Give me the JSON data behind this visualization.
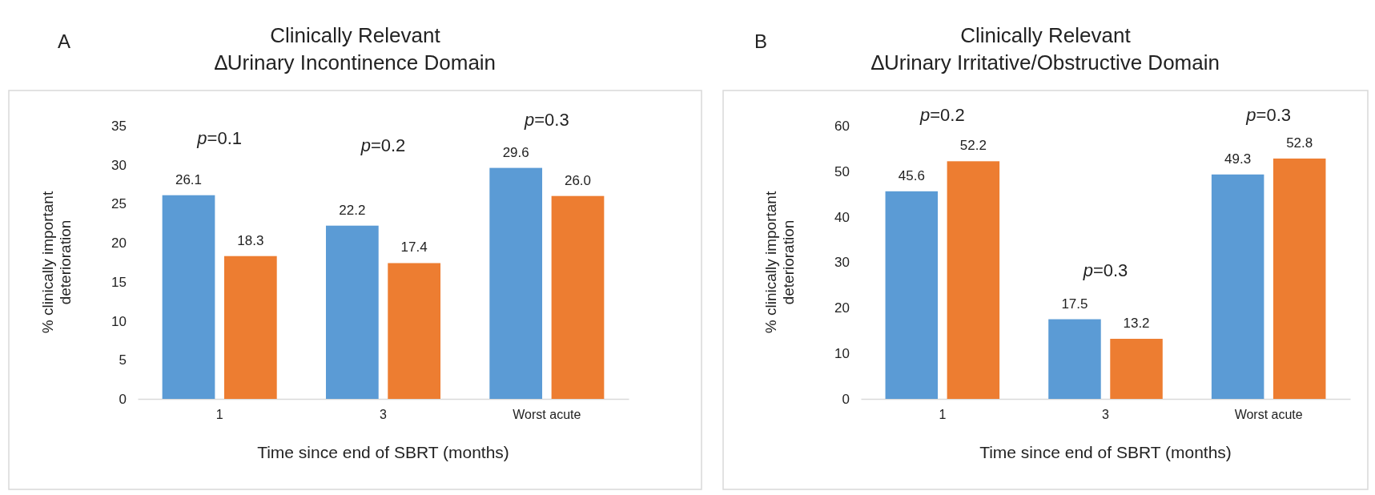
{
  "chart_data": [
    {
      "type": "bar",
      "title": "Clinically Relevant\n∆Urinary Incontinence Domain",
      "xlabel": "Time since end of SBRT (months)",
      "ylabel": "% clinically important\ndeterioration",
      "categories": [
        "1",
        "3",
        "Worst acute"
      ],
      "series": [
        {
          "color": "#5b9bd5",
          "values": [
            26.1,
            22.2,
            29.6
          ],
          "value_labels": [
            "26.1",
            "22.2",
            "29.6"
          ]
        },
        {
          "color": "#ed7d31",
          "values": [
            18.3,
            17.4,
            26.0
          ],
          "value_labels": [
            "18.3",
            "17.4",
            "26.0"
          ]
        }
      ],
      "ylim": [
        0,
        35
      ],
      "yticks": [
        0,
        5,
        10,
        15,
        20,
        25,
        30,
        35
      ],
      "grid": false,
      "annotations": [
        "A",
        "p=0.1",
        "p=0.2",
        "p=0.3"
      ]
    },
    {
      "type": "bar",
      "title": "Clinically Relevant\n∆Urinary Irritative/Obstructive Domain",
      "xlabel": "Time since end of SBRT (months)",
      "ylabel": "% clinically important\ndeterioration",
      "categories": [
        "1",
        "3",
        "Worst acute"
      ],
      "series": [
        {
          "color": "#5b9bd5",
          "values": [
            45.6,
            17.5,
            49.3
          ],
          "value_labels": [
            "45.6",
            "17.5",
            "49.3"
          ]
        },
        {
          "color": "#ed7d31",
          "values": [
            52.2,
            13.2,
            52.8
          ],
          "value_labels": [
            "52.2",
            "13.2",
            "52.8"
          ]
        }
      ],
      "ylim": [
        0,
        60
      ],
      "yticks": [
        0,
        10,
        20,
        30,
        40,
        50,
        60
      ],
      "grid": false,
      "annotations": [
        "B",
        "p=0.2",
        "p=0.3",
        "p=0.3"
      ]
    }
  ]
}
